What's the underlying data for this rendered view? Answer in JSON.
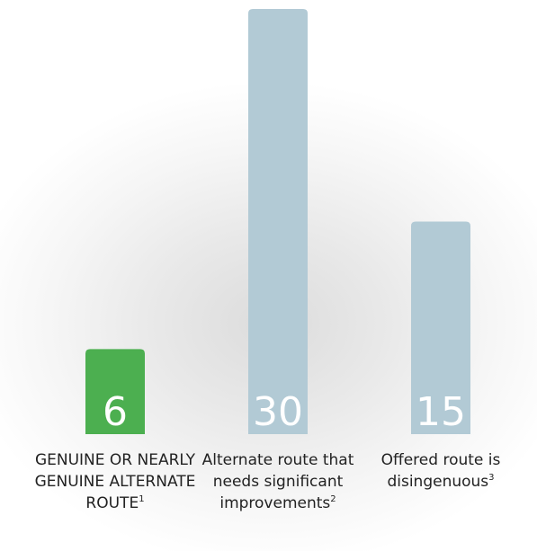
{
  "chart_data": {
    "type": "bar",
    "categories": [
      "GENUINE OR NEARLY GENUINE ALTERNATE ROUTE",
      "Alternate route that needs significant improvements",
      "Offered route is disingenuous"
    ],
    "footnote_marks": [
      "1",
      "2",
      "3"
    ],
    "values": [
      6,
      30,
      15
    ],
    "bar_colors": [
      "#4caf50",
      "#b2cad5",
      "#b2cad5"
    ],
    "value_label_color": "#ffffff",
    "title": "",
    "xlabel": "",
    "ylabel": "",
    "ylim": [
      0,
      30
    ],
    "grid": false,
    "legend": "none"
  }
}
